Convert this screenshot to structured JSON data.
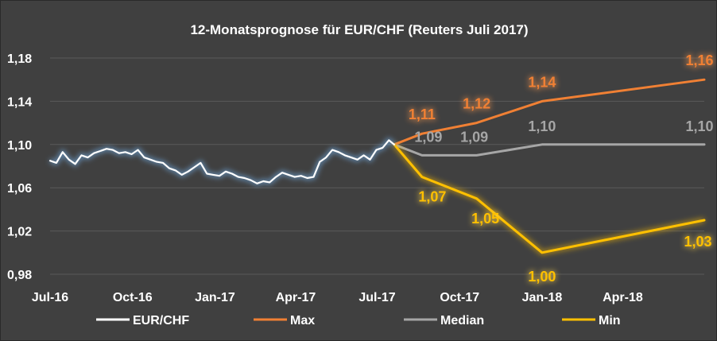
{
  "chart_data": {
    "type": "line",
    "title": "12-Monatsprognose für  EUR/CHF (Reuters Juli 2017)",
    "xlabel": "",
    "ylabel": "",
    "x_range": [
      "2016-07-01",
      "2018-07-01"
    ],
    "ylim": [
      0.98,
      1.18
    ],
    "yticks": [
      0.98,
      1.02,
      1.06,
      1.1,
      1.14,
      1.18
    ],
    "ytick_labels": [
      "0,98",
      "1,02",
      "1,06",
      "1,10",
      "1,14",
      "1,18"
    ],
    "xtick_labels": [
      {
        "date": "2016-07-01",
        "label": "Jul-16"
      },
      {
        "date": "2016-10-01",
        "label": "Oct-16"
      },
      {
        "date": "2017-01-01",
        "label": "Jan-17"
      },
      {
        "date": "2017-04-01",
        "label": "Apr-17"
      },
      {
        "date": "2017-07-01",
        "label": "Jul-17"
      },
      {
        "date": "2017-10-01",
        "label": "Oct-17"
      },
      {
        "date": "2018-01-01",
        "label": "Jan-18"
      },
      {
        "date": "2018-04-01",
        "label": "Apr-18"
      }
    ],
    "grid": true,
    "legend_position": "bottom",
    "series": [
      {
        "name": "EUR/CHF",
        "color": "#ffffff",
        "points": [
          [
            "2016-07-01",
            1.085
          ],
          [
            "2016-07-08",
            1.083
          ],
          [
            "2016-07-15",
            1.093
          ],
          [
            "2016-07-22",
            1.086
          ],
          [
            "2016-07-29",
            1.082
          ],
          [
            "2016-08-05",
            1.09
          ],
          [
            "2016-08-12",
            1.088
          ],
          [
            "2016-08-19",
            1.092
          ],
          [
            "2016-08-26",
            1.094
          ],
          [
            "2016-09-02",
            1.096
          ],
          [
            "2016-09-09",
            1.095
          ],
          [
            "2016-09-16",
            1.092
          ],
          [
            "2016-09-23",
            1.093
          ],
          [
            "2016-09-30",
            1.091
          ],
          [
            "2016-10-07",
            1.095
          ],
          [
            "2016-10-14",
            1.088
          ],
          [
            "2016-10-21",
            1.086
          ],
          [
            "2016-10-28",
            1.084
          ],
          [
            "2016-11-04",
            1.083
          ],
          [
            "2016-11-11",
            1.078
          ],
          [
            "2016-11-18",
            1.076
          ],
          [
            "2016-11-25",
            1.072
          ],
          [
            "2016-12-02",
            1.075
          ],
          [
            "2016-12-09",
            1.079
          ],
          [
            "2016-12-16",
            1.083
          ],
          [
            "2016-12-23",
            1.073
          ],
          [
            "2016-12-30",
            1.072
          ],
          [
            "2017-01-06",
            1.071
          ],
          [
            "2017-01-13",
            1.075
          ],
          [
            "2017-01-20",
            1.073
          ],
          [
            "2017-01-27",
            1.07
          ],
          [
            "2017-02-03",
            1.069
          ],
          [
            "2017-02-10",
            1.067
          ],
          [
            "2017-02-17",
            1.064
          ],
          [
            "2017-02-24",
            1.066
          ],
          [
            "2017-03-03",
            1.065
          ],
          [
            "2017-03-10",
            1.07
          ],
          [
            "2017-03-17",
            1.074
          ],
          [
            "2017-03-24",
            1.072
          ],
          [
            "2017-03-31",
            1.07
          ],
          [
            "2017-04-07",
            1.071
          ],
          [
            "2017-04-14",
            1.069
          ],
          [
            "2017-04-21",
            1.07
          ],
          [
            "2017-04-28",
            1.084
          ],
          [
            "2017-05-05",
            1.088
          ],
          [
            "2017-05-12",
            1.095
          ],
          [
            "2017-05-19",
            1.093
          ],
          [
            "2017-05-26",
            1.09
          ],
          [
            "2017-06-02",
            1.088
          ],
          [
            "2017-06-09",
            1.086
          ],
          [
            "2017-06-16",
            1.09
          ],
          [
            "2017-06-23",
            1.086
          ],
          [
            "2017-06-30",
            1.095
          ],
          [
            "2017-07-07",
            1.097
          ],
          [
            "2017-07-14",
            1.104
          ],
          [
            "2017-07-20",
            1.1
          ]
        ]
      },
      {
        "name": "Max",
        "color": "#f08034",
        "points": [
          [
            "2017-07-20",
            1.1
          ],
          [
            "2017-08-20",
            1.11
          ],
          [
            "2017-10-20",
            1.12
          ],
          [
            "2018-01-01",
            1.14
          ],
          [
            "2018-07-01",
            1.16
          ]
        ],
        "labels": [
          {
            "date": "2017-08-20",
            "value": 1.11,
            "text": "1,11"
          },
          {
            "date": "2017-10-20",
            "value": 1.12,
            "text": "1,12"
          },
          {
            "date": "2018-01-01",
            "value": 1.14,
            "text": "1,14"
          },
          {
            "date": "2018-07-01",
            "value": 1.16,
            "text": "1,16"
          }
        ]
      },
      {
        "name": "Median",
        "color": "#a6a6a6",
        "points": [
          [
            "2017-07-20",
            1.1
          ],
          [
            "2017-08-20",
            1.09
          ],
          [
            "2017-10-20",
            1.09
          ],
          [
            "2018-01-01",
            1.1
          ],
          [
            "2018-07-01",
            1.1
          ]
        ],
        "labels": [
          {
            "date": "2017-08-20",
            "value": 1.09,
            "text": "1,09"
          },
          {
            "date": "2017-10-20",
            "value": 1.09,
            "text": "1,09"
          },
          {
            "date": "2018-01-01",
            "value": 1.1,
            "text": "1,10"
          },
          {
            "date": "2018-07-01",
            "value": 1.1,
            "text": "1,10"
          }
        ]
      },
      {
        "name": "Min",
        "color": "#ffc000",
        "points": [
          [
            "2017-07-20",
            1.1
          ],
          [
            "2017-08-20",
            1.07
          ],
          [
            "2017-10-20",
            1.05
          ],
          [
            "2018-01-01",
            1.0
          ],
          [
            "2018-07-01",
            1.03
          ]
        ],
        "labels": [
          {
            "date": "2017-08-20",
            "value": 1.07,
            "text": "1,07"
          },
          {
            "date": "2017-10-20",
            "value": 1.05,
            "text": "1,05"
          },
          {
            "date": "2018-01-01",
            "value": 1.0,
            "text": "1,00"
          },
          {
            "date": "2018-07-01",
            "value": 1.03,
            "text": "1,03"
          }
        ]
      }
    ]
  }
}
